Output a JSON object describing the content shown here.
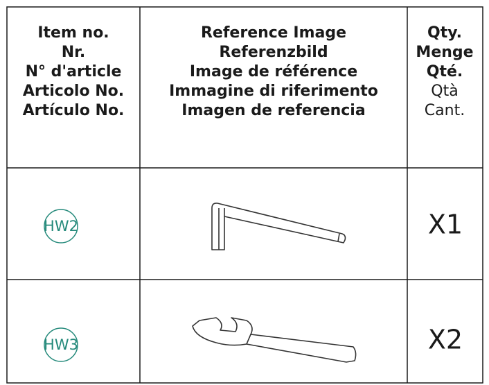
{
  "header": {
    "item_no": [
      "Item no.",
      "Nr.",
      "N° d'article",
      "Articolo No.",
      "Artículo No."
    ],
    "reference_image": [
      "Reference Image",
      "Referenzbild",
      "Image de référence",
      "Immagine di riferimento",
      "Imagen de referencia"
    ],
    "qty": [
      "Qty.",
      "Menge",
      "Qté.",
      "Qtà",
      "Cant."
    ]
  },
  "rows": [
    {
      "item": "HW2",
      "qty": "X1"
    },
    {
      "item": "HW3",
      "qty": "X2"
    }
  ]
}
